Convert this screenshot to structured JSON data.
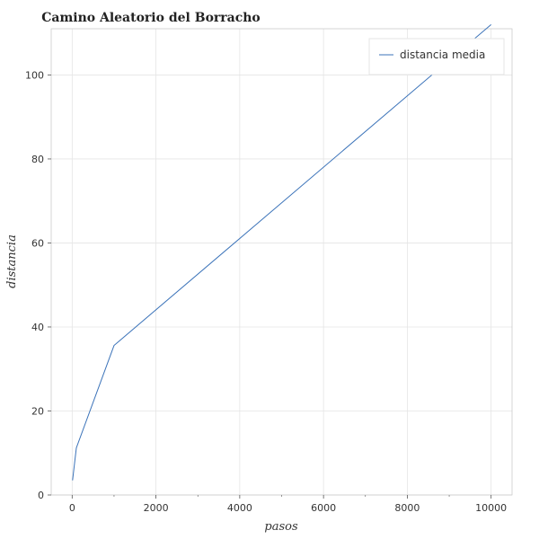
{
  "chart_data": {
    "type": "line",
    "title": "Camino Aleatorio del Borracho",
    "xlabel": "pasos",
    "ylabel": "distancia",
    "xlim": [
      -500,
      10500
    ],
    "ylim": [
      0,
      111
    ],
    "xticks": [
      0,
      2000,
      4000,
      6000,
      8000,
      10000
    ],
    "yticks": [
      0,
      20,
      40,
      60,
      80,
      100
    ],
    "grid": true,
    "legend_position": "top-right",
    "series": [
      {
        "name": "distancia media",
        "color": "#3b73b9",
        "x": [
          10,
          100,
          1000,
          10000
        ],
        "y": [
          3.5,
          11.2,
          35.6,
          112.0
        ]
      }
    ]
  }
}
